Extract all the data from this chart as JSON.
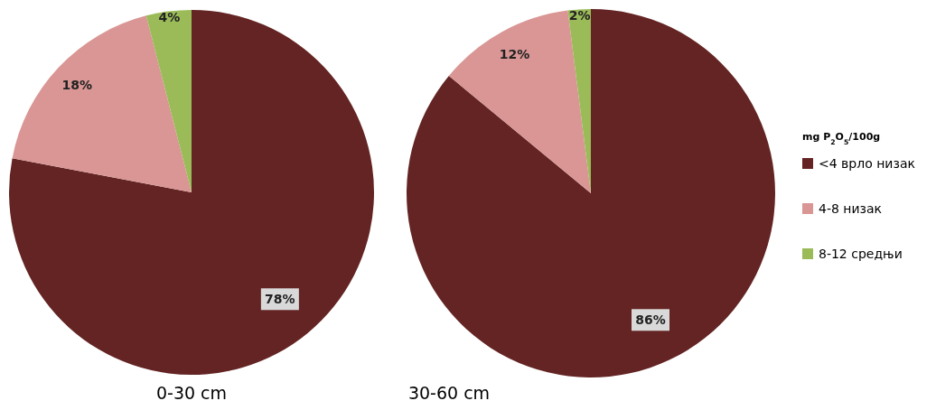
{
  "chart_data": [
    {
      "type": "pie",
      "title": "0-30 cm",
      "categories": [
        null,
        null,
        null
      ],
      "values": [
        78,
        18,
        4
      ],
      "colors": [
        "#632423",
        "#d99694",
        "#9bbb59"
      ],
      "value_labels": [
        "78%",
        "18%",
        "4%"
      ],
      "legend": false
    },
    {
      "type": "pie",
      "title": "30-60 cm",
      "categories": [
        "<4 врло низак",
        "4-8 низак",
        "8-12 средњи"
      ],
      "values": [
        86,
        12,
        2
      ],
      "colors": [
        "#632423",
        "#d99694",
        "#9bbb59"
      ],
      "value_labels": [
        "86%",
        "12%",
        "2%"
      ],
      "legend": "right",
      "legend_title": "mg P$_{2}$O$_{5}$/100g"
    }
  ]
}
